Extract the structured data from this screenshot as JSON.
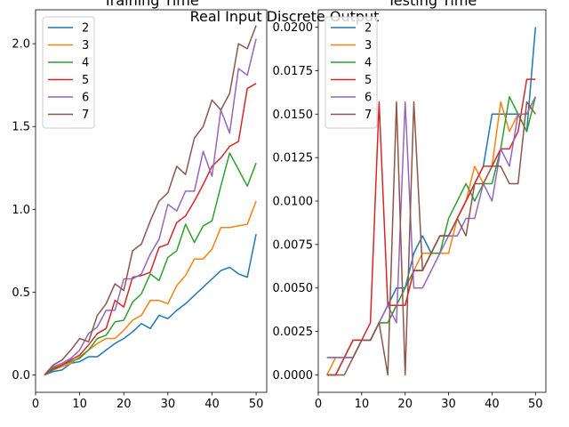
{
  "figure": {
    "suptitle": "Real Input Discrete Output"
  },
  "chart_data": [
    {
      "type": "line",
      "title": "Training Time",
      "xlabel": "",
      "ylabel": "",
      "xlim": [
        0,
        52.4
      ],
      "ylim": [
        -0.105,
        2.205
      ],
      "xticks": [
        0,
        10,
        20,
        30,
        40,
        50
      ],
      "yticks": [
        0.0,
        0.5,
        1.0,
        1.5,
        2.0
      ],
      "ytick_labels": [
        "0.0",
        "0.5",
        "1.0",
        "1.5",
        "2.0"
      ],
      "grid": false,
      "legend": "top-left",
      "x": [
        2,
        4,
        6,
        8,
        10,
        12,
        14,
        16,
        18,
        20,
        22,
        24,
        26,
        28,
        30,
        32,
        34,
        36,
        38,
        40,
        42,
        44,
        46,
        48,
        50
      ],
      "series": [
        {
          "name": "2",
          "color": "#1f77b4",
          "values": [
            0.0,
            0.02,
            0.03,
            0.07,
            0.08,
            0.11,
            0.11,
            0.15,
            0.19,
            0.22,
            0.26,
            0.31,
            0.28,
            0.36,
            0.34,
            0.39,
            0.43,
            0.48,
            0.53,
            0.58,
            0.63,
            0.65,
            0.61,
            0.59,
            0.85
          ]
        },
        {
          "name": "3",
          "color": "#ff7f0e",
          "values": [
            0.0,
            0.03,
            0.05,
            0.07,
            0.11,
            0.15,
            0.19,
            0.22,
            0.22,
            0.27,
            0.33,
            0.36,
            0.45,
            0.45,
            0.43,
            0.54,
            0.6,
            0.7,
            0.7,
            0.76,
            0.89,
            0.89,
            0.9,
            0.91,
            1.05
          ]
        },
        {
          "name": "4",
          "color": "#2ca02c",
          "values": [
            0.0,
            0.03,
            0.06,
            0.08,
            0.1,
            0.15,
            0.22,
            0.24,
            0.32,
            0.33,
            0.44,
            0.49,
            0.61,
            0.57,
            0.71,
            0.75,
            0.91,
            0.8,
            0.9,
            0.93,
            1.14,
            1.34,
            1.24,
            1.14,
            1.28
          ]
        },
        {
          "name": "5",
          "color": "#d62728",
          "values": [
            0.0,
            0.04,
            0.06,
            0.09,
            0.12,
            0.18,
            0.25,
            0.28,
            0.45,
            0.41,
            0.59,
            0.6,
            0.62,
            0.77,
            0.79,
            0.92,
            0.96,
            1.05,
            1.15,
            1.26,
            1.31,
            1.38,
            1.41,
            1.73,
            1.76
          ]
        },
        {
          "name": "6",
          "color": "#9467bd",
          "values": [
            0.0,
            0.05,
            0.07,
            0.1,
            0.15,
            0.25,
            0.29,
            0.39,
            0.39,
            0.58,
            0.58,
            0.61,
            0.73,
            0.82,
            1.03,
            0.99,
            1.11,
            1.11,
            1.35,
            1.2,
            1.6,
            1.46,
            1.85,
            1.81,
            2.03
          ]
        },
        {
          "name": "7",
          "color": "#8c564b",
          "values": [
            0.0,
            0.06,
            0.09,
            0.15,
            0.22,
            0.2,
            0.36,
            0.43,
            0.55,
            0.51,
            0.75,
            0.79,
            0.93,
            1.05,
            1.1,
            1.26,
            1.21,
            1.43,
            1.5,
            1.66,
            1.6,
            1.7,
            2.0,
            1.97,
            2.11
          ]
        }
      ]
    },
    {
      "type": "line",
      "title": "Testing Time",
      "xlabel": "",
      "ylabel": "",
      "xlim": [
        0,
        52.4
      ],
      "ylim": [
        -0.001,
        0.021
      ],
      "xticks": [
        0,
        10,
        20,
        30,
        40,
        50
      ],
      "yticks": [
        0.0,
        0.0025,
        0.005,
        0.0075,
        0.01,
        0.0125,
        0.015,
        0.0175,
        0.02
      ],
      "ytick_labels": [
        "0.0000",
        "0.0025",
        "0.0050",
        "0.0075",
        "0.0100",
        "0.0125",
        "0.0150",
        "0.0175",
        "0.0200"
      ],
      "grid": false,
      "legend": "top-left",
      "x": [
        2,
        4,
        6,
        8,
        10,
        12,
        14,
        16,
        18,
        20,
        22,
        24,
        26,
        28,
        30,
        32,
        34,
        36,
        38,
        40,
        42,
        44,
        46,
        48,
        50
      ],
      "series": [
        {
          "name": "2",
          "color": "#1f77b4",
          "values": [
            0.001,
            0.001,
            0.001,
            0.001,
            0.002,
            0.002,
            0.003,
            0.004,
            0.005,
            0.005,
            0.007,
            0.008,
            0.007,
            0.008,
            0.008,
            0.009,
            0.01,
            0.011,
            0.012,
            0.015,
            0.015,
            0.015,
            0.015,
            0.014,
            0.02
          ]
        },
        {
          "name": "3",
          "color": "#ff7f0e",
          "values": [
            0.0,
            0.001,
            0.001,
            0.001,
            0.002,
            0.002,
            0.003,
            0.003,
            0.004,
            0.004,
            0.006,
            0.007,
            0.007,
            0.007,
            0.007,
            0.009,
            0.01,
            0.012,
            0.011,
            0.012,
            0.0157,
            0.014,
            0.015,
            0.015,
            0.016
          ]
        },
        {
          "name": "4",
          "color": "#2ca02c",
          "values": [
            0.0,
            0.0,
            0.001,
            0.002,
            0.002,
            0.002,
            0.003,
            0.003,
            0.004,
            0.005,
            0.006,
            0.006,
            0.007,
            0.007,
            0.009,
            0.01,
            0.011,
            0.01,
            0.011,
            0.011,
            0.013,
            0.016,
            0.015,
            0.014,
            0.016
          ]
        },
        {
          "name": "5",
          "color": "#d62728",
          "values": [
            0.0,
            0.0,
            0.001,
            0.002,
            0.002,
            0.003,
            0.0157,
            0.004,
            0.004,
            0.004,
            0.006,
            0.006,
            0.007,
            0.008,
            0.008,
            0.009,
            0.01,
            0.011,
            0.012,
            0.012,
            0.013,
            0.013,
            0.014,
            0.017,
            0.017
          ]
        },
        {
          "name": "6",
          "color": "#9467bd",
          "values": [
            0.001,
            0.001,
            0.001,
            0.001,
            0.002,
            0.002,
            0.003,
            0.004,
            0.003,
            0.0157,
            0.005,
            0.005,
            0.006,
            0.007,
            0.008,
            0.008,
            0.009,
            0.009,
            0.011,
            0.01,
            0.013,
            0.012,
            0.015,
            0.015,
            0.016
          ]
        },
        {
          "name": "7",
          "color": "#8c564b",
          "values": [
            0.0,
            0.0,
            0.0,
            0.001,
            0.002,
            0.002,
            0.003,
            0.0,
            0.0157,
            0.0,
            0.0157,
            0.006,
            0.007,
            0.008,
            0.008,
            0.009,
            0.008,
            0.011,
            0.011,
            0.012,
            0.012,
            0.011,
            0.011,
            0.0157,
            0.015
          ]
        }
      ]
    }
  ]
}
